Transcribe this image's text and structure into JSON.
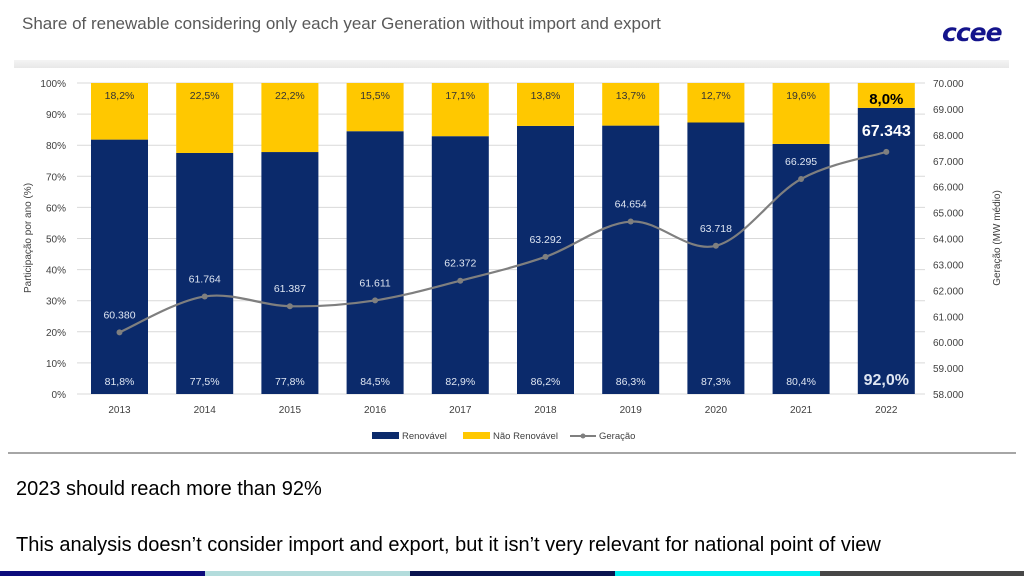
{
  "slide": {
    "title": "Share of renewable considering only each year Generation without import and export",
    "logo_text": "ccee",
    "note1": "2023 should reach more than 92%",
    "note2": "This analysis doesn’t consider import and export, but it isn’t very relevant for national point of view",
    "strip_colors": [
      "#0c0c7c",
      "#b3dcdc",
      "#0a1450",
      "#00eef0",
      "#474747"
    ]
  },
  "chart_data": {
    "type": "bar",
    "stacked": true,
    "categories": [
      "2013",
      "2014",
      "2015",
      "2016",
      "2017",
      "2018",
      "2019",
      "2020",
      "2021",
      "2022"
    ],
    "series": [
      {
        "name": "Renovável",
        "color": "#0b2a6b",
        "values": [
          81.8,
          77.5,
          77.8,
          84.5,
          82.9,
          86.2,
          86.3,
          87.3,
          80.4,
          92.0
        ],
        "labels": [
          "81,8%",
          "77,5%",
          "77,8%",
          "84,5%",
          "82,9%",
          "86,2%",
          "86,3%",
          "87,3%",
          "80,4%",
          "92,0%"
        ]
      },
      {
        "name": "Não Renovável",
        "color": "#ffc800",
        "values": [
          18.2,
          22.5,
          22.2,
          15.5,
          17.1,
          13.8,
          13.7,
          12.7,
          19.6,
          8.0
        ],
        "labels": [
          "18,2%",
          "22,5%",
          "22,2%",
          "15,5%",
          "17,1%",
          "13,8%",
          "13,7%",
          "12,7%",
          "19,6%",
          "8,0%"
        ]
      },
      {
        "name": "Geração",
        "type": "line",
        "axis": "right",
        "color": "#7f7f7f",
        "values": [
          60380,
          61764,
          61387,
          61611,
          62372,
          63292,
          64654,
          63718,
          66295,
          67343
        ],
        "labels": [
          "60.380",
          "61.764",
          "61.387",
          "61.611",
          "62.372",
          "63.292",
          "64.654",
          "63.718",
          "66.295",
          "67.343"
        ]
      }
    ],
    "ylabel": "Participação por ano (%)",
    "y2label": "Geração (MW médio)",
    "ylim": [
      0,
      100
    ],
    "y2lim": [
      58000,
      70000
    ],
    "yticks": [
      "0%",
      "10%",
      "20%",
      "30%",
      "40%",
      "50%",
      "60%",
      "70%",
      "80%",
      "90%",
      "100%"
    ],
    "y2ticks": [
      "58.000",
      "59.000",
      "60.000",
      "61.000",
      "62.000",
      "63.000",
      "64.000",
      "65.000",
      "66.000",
      "67.000",
      "68.000",
      "69.000",
      "70.000"
    ],
    "grid": true,
    "legend": "bottom"
  }
}
